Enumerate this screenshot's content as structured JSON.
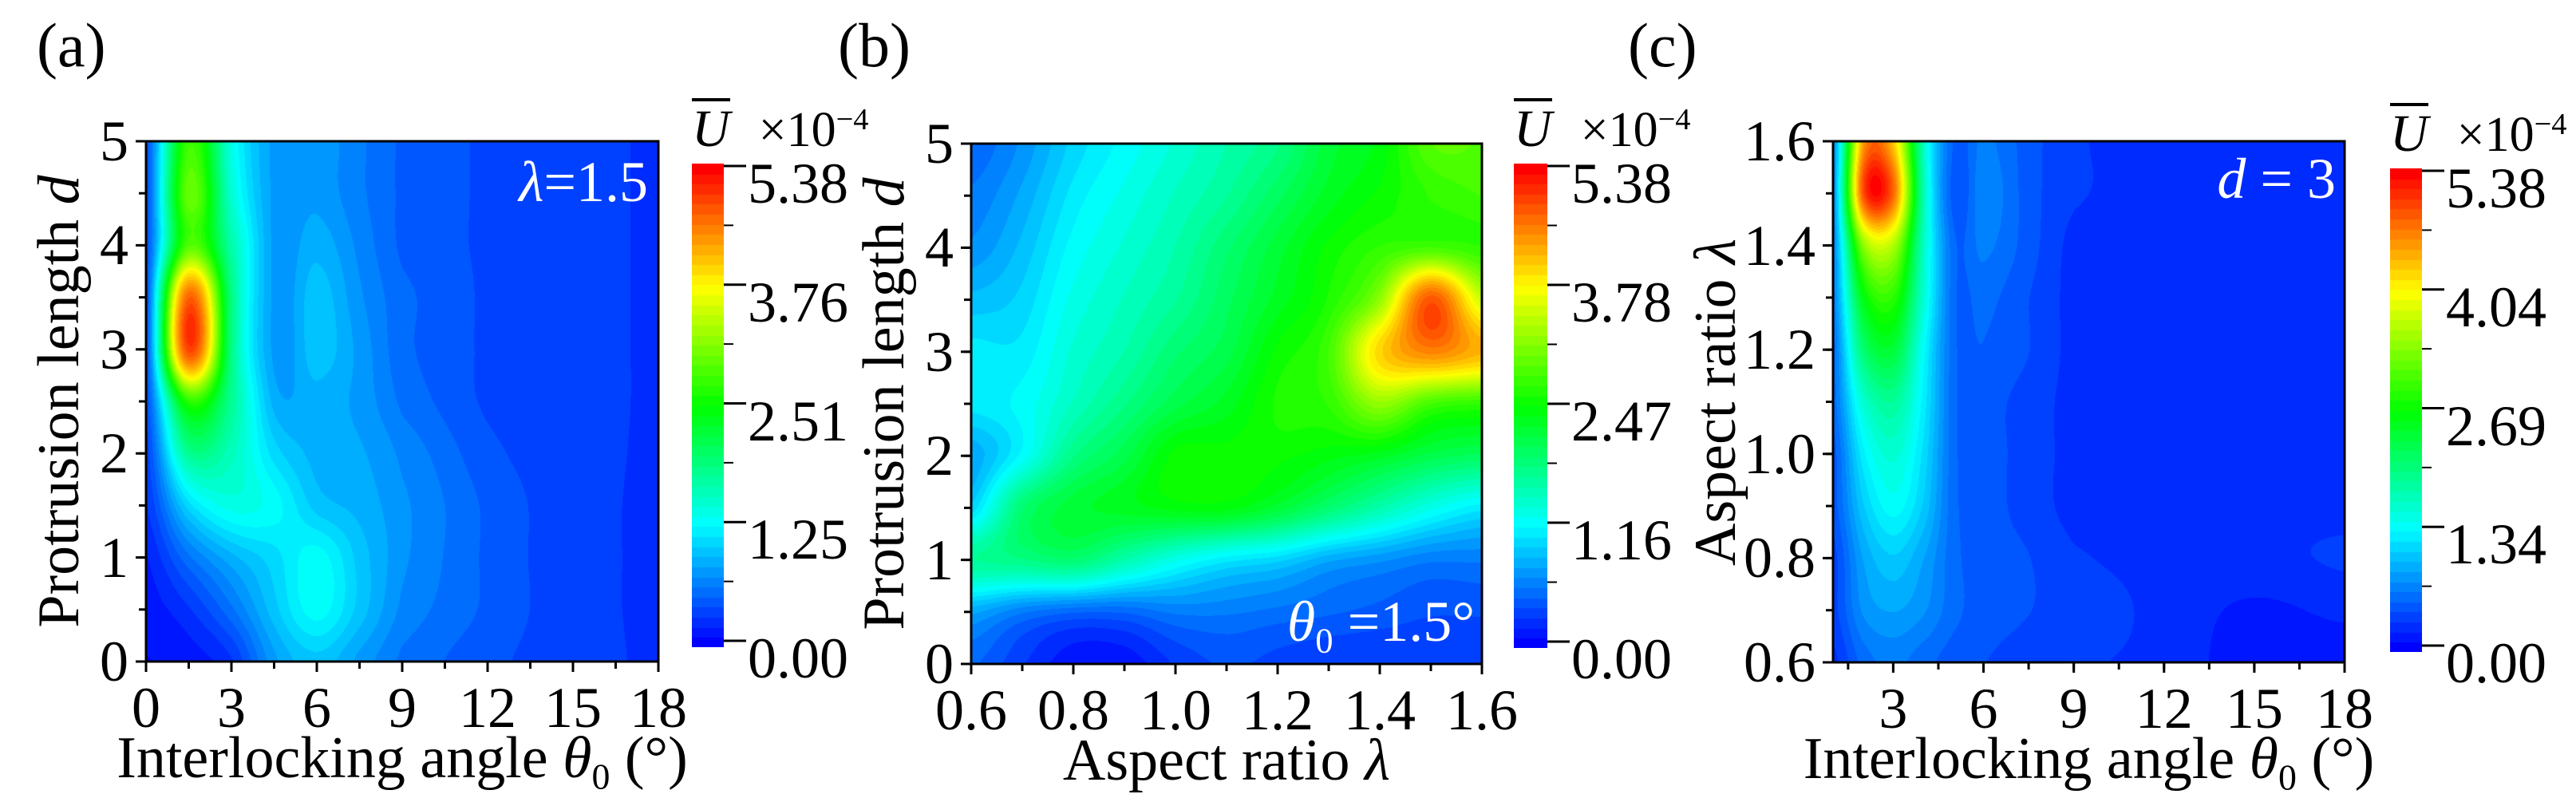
{
  "colormap": [
    "#0000ff",
    "#00ffff",
    "#00ff00",
    "#ffff00",
    "#ff0000"
  ],
  "chart_data": [
    {
      "type": "heatmap",
      "panel_label": "(a)",
      "xlabel": {
        "text": "Interlocking angle ",
        "symbol": "θ",
        "subscript": "0",
        "unit": " (°)"
      },
      "ylabel": {
        "text": "Protrusion length ",
        "symbol": "d"
      },
      "xlim": [
        0,
        18
      ],
      "ylim": [
        0,
        5
      ],
      "x_ticks": [
        "0",
        "3",
        "6",
        "9",
        "12",
        "15",
        "18"
      ],
      "x_tick_values": [
        0,
        3,
        6,
        9,
        12,
        15,
        18
      ],
      "x_minor_step": 1.5,
      "y_ticks": [
        "0",
        "1",
        "2",
        "3",
        "4",
        "5"
      ],
      "y_tick_values": [
        0,
        1,
        2,
        3,
        4,
        5
      ],
      "y_minor_step": 0.5,
      "annotation": {
        "symbol": "λ",
        "subscript": "",
        "text": "=1.5"
      },
      "colorbar": {
        "label": "U",
        "multiplier": "×10",
        "exponent": "−4",
        "ticks": [
          "0.00",
          "1.25",
          "2.51",
          "3.76",
          "5.38"
        ],
        "tick_values": [
          0,
          1.25,
          2.51,
          3.76,
          5.38
        ]
      },
      "grid_x": [
        0,
        1.5,
        3,
        4.5,
        6,
        7.5,
        9,
        12,
        15,
        18
      ],
      "grid_y": [
        0,
        0.5,
        1,
        1.5,
        2,
        2.5,
        3,
        3.5,
        4,
        4.5,
        5
      ],
      "z": [
        [
          0.1,
          0.15,
          0.3,
          0.8,
          1.0,
          0.8,
          0.6,
          0.45,
          0.35,
          0.3
        ],
        [
          0.15,
          0.3,
          0.6,
          1.0,
          1.3,
          1.0,
          0.7,
          0.5,
          0.35,
          0.3
        ],
        [
          0.2,
          0.6,
          0.9,
          1.1,
          1.3,
          1.0,
          0.75,
          0.5,
          0.35,
          0.3
        ],
        [
          0.3,
          1.1,
          1.4,
          1.3,
          1.0,
          0.9,
          0.75,
          0.5,
          0.35,
          0.3
        ],
        [
          0.35,
          1.8,
          1.6,
          1.1,
          0.9,
          0.85,
          0.7,
          0.45,
          0.35,
          0.3
        ],
        [
          0.4,
          2.7,
          1.8,
          0.9,
          0.9,
          0.8,
          0.6,
          0.4,
          0.35,
          0.3
        ],
        [
          0.4,
          4.9,
          1.9,
          0.8,
          1.0,
          0.8,
          0.55,
          0.4,
          0.35,
          0.3
        ],
        [
          0.4,
          4.7,
          1.9,
          0.8,
          1.0,
          0.75,
          0.55,
          0.4,
          0.35,
          0.3
        ],
        [
          0.4,
          2.9,
          1.7,
          0.8,
          0.9,
          0.7,
          0.5,
          0.4,
          0.35,
          0.3
        ],
        [
          0.4,
          3.0,
          1.5,
          0.8,
          0.8,
          0.65,
          0.5,
          0.4,
          0.35,
          0.3
        ],
        [
          0.4,
          2.8,
          1.4,
          0.8,
          0.8,
          0.65,
          0.5,
          0.4,
          0.35,
          0.3
        ]
      ]
    },
    {
      "type": "heatmap",
      "panel_label": "(b)",
      "xlabel": {
        "text": "Aspect ratio ",
        "symbol": "λ",
        "subscript": "",
        "unit": ""
      },
      "ylabel": {
        "text": "Protrusion length ",
        "symbol": "d"
      },
      "xlim": [
        0.6,
        1.6
      ],
      "ylim": [
        0,
        5
      ],
      "x_ticks": [
        "0.6",
        "0.8",
        "1.0",
        "1.2",
        "1.4",
        "1.6"
      ],
      "x_tick_values": [
        0.6,
        0.8,
        1.0,
        1.2,
        1.4,
        1.6
      ],
      "x_minor_step": 0.1,
      "y_ticks": [
        "0",
        "1",
        "2",
        "3",
        "4",
        "5"
      ],
      "y_tick_values": [
        0,
        1,
        2,
        3,
        4,
        5
      ],
      "y_minor_step": 0.5,
      "annotation": {
        "symbol": "θ",
        "subscript": "0",
        "text": " =1.5°"
      },
      "colorbar": {
        "label": "U",
        "multiplier": "×10",
        "exponent": "−4",
        "ticks": [
          "0.00",
          "1.16",
          "2.47",
          "3.78",
          "5.38"
        ],
        "tick_values": [
          0,
          1.16,
          2.47,
          3.78,
          5.38
        ]
      },
      "grid_x": [
        0.6,
        0.7,
        0.8,
        0.9,
        1.0,
        1.1,
        1.2,
        1.3,
        1.4,
        1.5,
        1.6
      ],
      "grid_y": [
        0,
        0.5,
        1,
        1.5,
        2,
        2.5,
        3,
        3.5,
        4,
        4.5,
        5
      ],
      "z": [
        [
          0.5,
          0.3,
          0.12,
          0.12,
          0.3,
          0.4,
          0.35,
          0.3,
          0.3,
          0.3,
          0.3
        ],
        [
          0.8,
          0.6,
          0.5,
          0.5,
          0.6,
          0.6,
          0.55,
          0.5,
          0.45,
          0.4,
          0.4
        ],
        [
          1.7,
          1.8,
          1.9,
          1.6,
          1.3,
          1.1,
          1.0,
          0.8,
          0.7,
          0.6,
          0.6
        ],
        [
          1.0,
          1.9,
          2.2,
          2.3,
          2.4,
          2.4,
          2.2,
          1.9,
          1.6,
          1.3,
          1.1
        ],
        [
          0.8,
          1.2,
          1.8,
          2.1,
          2.5,
          2.5,
          2.5,
          2.4,
          2.3,
          2.1,
          2.0
        ],
        [
          1.1,
          1.2,
          1.5,
          1.8,
          2.1,
          2.3,
          2.6,
          2.7,
          3.2,
          2.8,
          2.7
        ],
        [
          1.1,
          1.1,
          1.4,
          1.6,
          1.9,
          2.1,
          2.5,
          2.8,
          4.0,
          4.5,
          4.2
        ],
        [
          0.9,
          1.0,
          1.3,
          1.5,
          1.7,
          2.0,
          2.3,
          2.6,
          3.2,
          4.8,
          3.5
        ],
        [
          0.7,
          0.9,
          1.2,
          1.4,
          1.6,
          1.9,
          2.2,
          2.5,
          2.7,
          2.8,
          2.7
        ],
        [
          0.6,
          0.8,
          1.1,
          1.3,
          1.5,
          1.7,
          2.0,
          2.3,
          2.5,
          2.7,
          2.8
        ],
        [
          0.5,
          0.7,
          1.0,
          1.2,
          1.4,
          1.6,
          1.8,
          2.2,
          2.4,
          2.9,
          2.9
        ]
      ]
    },
    {
      "type": "heatmap",
      "panel_label": "(c)",
      "xlabel": {
        "text": "Interlocking angle ",
        "symbol": "θ",
        "subscript": "0",
        "unit": " (°)"
      },
      "ylabel": {
        "text": "Aspect ratio ",
        "symbol": "λ"
      },
      "xlim": [
        1,
        18
      ],
      "ylim": [
        0.6,
        1.6
      ],
      "x_ticks": [
        "3",
        "6",
        "9",
        "12",
        "15",
        "18"
      ],
      "x_tick_values": [
        3,
        6,
        9,
        12,
        15,
        18
      ],
      "x_minor_step": 1.5,
      "y_ticks": [
        "0.6",
        "0.8",
        "1.0",
        "1.2",
        "1.4",
        "1.6"
      ],
      "y_tick_values": [
        0.6,
        0.8,
        1.0,
        1.2,
        1.4,
        1.6
      ],
      "y_minor_step": 0.1,
      "annotation": {
        "symbol": "d",
        "subscript": "",
        "text": " = 3"
      },
      "colorbar": {
        "label": "U",
        "multiplier": "×10",
        "exponent": "−4",
        "ticks": [
          "0.00",
          "1.34",
          "2.69",
          "4.04",
          "5.38"
        ],
        "tick_values": [
          0,
          1.34,
          2.69,
          4.04,
          5.38
        ]
      },
      "grid_x": [
        1,
        2,
        3,
        4,
        5,
        6,
        7.5,
        9,
        12,
        15,
        18
      ],
      "grid_y": [
        0.6,
        0.7,
        0.8,
        0.9,
        1.0,
        1.1,
        1.2,
        1.3,
        1.4,
        1.5,
        1.6
      ],
      "z": [
        [
          0.3,
          0.6,
          0.7,
          0.6,
          0.5,
          0.45,
          0.4,
          0.35,
          0.3,
          0.15,
          0.15
        ],
        [
          0.4,
          0.8,
          0.9,
          0.8,
          0.6,
          0.5,
          0.45,
          0.4,
          0.3,
          0.2,
          0.25
        ],
        [
          0.4,
          0.9,
          1.1,
          0.9,
          0.6,
          0.5,
          0.45,
          0.35,
          0.3,
          0.3,
          0.35
        ],
        [
          0.5,
          1.1,
          1.4,
          1.1,
          0.6,
          0.5,
          0.4,
          0.3,
          0.3,
          0.3,
          0.3
        ],
        [
          0.5,
          1.3,
          1.6,
          1.2,
          0.6,
          0.5,
          0.4,
          0.3,
          0.3,
          0.3,
          0.3
        ],
        [
          0.6,
          1.6,
          1.9,
          1.3,
          0.6,
          0.5,
          0.4,
          0.3,
          0.3,
          0.3,
          0.3
        ],
        [
          0.6,
          2.1,
          2.4,
          1.4,
          0.6,
          0.55,
          0.45,
          0.3,
          0.3,
          0.3,
          0.3
        ],
        [
          0.7,
          2.6,
          2.9,
          1.6,
          0.6,
          0.6,
          0.45,
          0.3,
          0.3,
          0.3,
          0.3
        ],
        [
          0.7,
          3.4,
          3.6,
          1.7,
          0.6,
          0.7,
          0.5,
          0.3,
          0.3,
          0.3,
          0.3
        ],
        [
          0.7,
          4.9,
          4.8,
          1.8,
          0.5,
          0.75,
          0.5,
          0.35,
          0.3,
          0.3,
          0.3
        ],
        [
          0.7,
          4.5,
          4.3,
          1.7,
          0.55,
          0.7,
          0.5,
          0.35,
          0.3,
          0.3,
          0.3
        ]
      ]
    }
  ]
}
